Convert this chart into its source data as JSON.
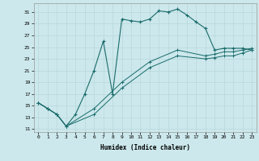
{
  "xlabel": "Humidex (Indice chaleur)",
  "bg_color": "#cce8ec",
  "grid_color": "#b8d8dc",
  "line_color": "#1a6b6b",
  "xlim": [
    -0.5,
    23.5
  ],
  "ylim": [
    10.5,
    32.5
  ],
  "yticks": [
    11,
    13,
    15,
    17,
    19,
    21,
    23,
    25,
    27,
    29,
    31
  ],
  "xticks": [
    0,
    1,
    2,
    3,
    4,
    5,
    6,
    7,
    8,
    9,
    10,
    11,
    12,
    13,
    14,
    15,
    16,
    17,
    18,
    19,
    20,
    21,
    22,
    23
  ],
  "line1_x": [
    0,
    1,
    2,
    3,
    4,
    5,
    6,
    7,
    8,
    9,
    10,
    11,
    12,
    13,
    14,
    15,
    16,
    17,
    18,
    19,
    20,
    21,
    22,
    23
  ],
  "line1_y": [
    15.5,
    14.5,
    13.5,
    11.5,
    13.5,
    17.0,
    21.0,
    26.0,
    17.0,
    29.8,
    29.5,
    29.3,
    29.8,
    31.2,
    31.0,
    31.5,
    30.5,
    29.3,
    28.2,
    24.5,
    24.8,
    24.8,
    24.8,
    24.5
  ],
  "line2_x": [
    0,
    1,
    2,
    3,
    6,
    9,
    12,
    15,
    18,
    19,
    20,
    21,
    22,
    23
  ],
  "line2_y": [
    15.5,
    14.5,
    13.5,
    11.5,
    13.5,
    18.0,
    21.5,
    23.5,
    23.0,
    23.2,
    23.5,
    23.5,
    24.0,
    24.5
  ],
  "line3_x": [
    0,
    1,
    2,
    3,
    6,
    9,
    12,
    15,
    18,
    19,
    20,
    21,
    22,
    23
  ],
  "line3_y": [
    15.5,
    14.5,
    13.5,
    11.5,
    14.5,
    19.0,
    22.5,
    24.5,
    23.5,
    23.8,
    24.2,
    24.2,
    24.5,
    24.8
  ]
}
